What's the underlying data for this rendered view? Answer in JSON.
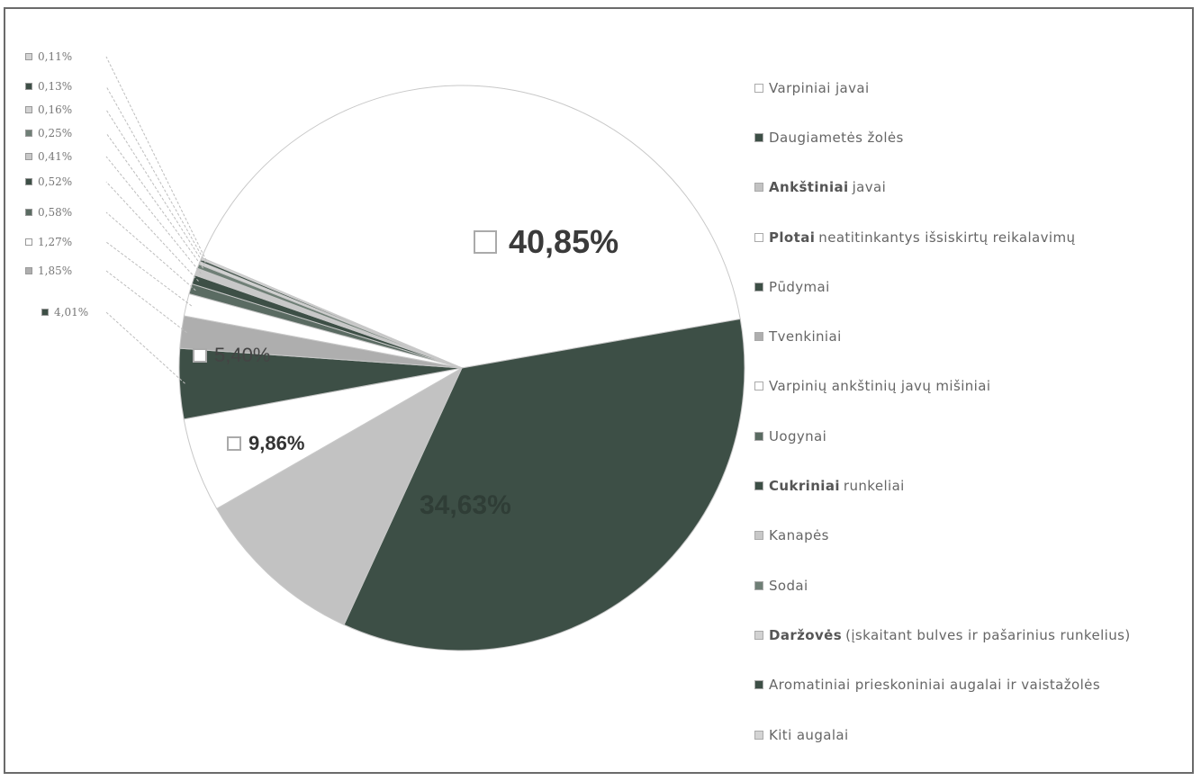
{
  "chart_data": {
    "type": "pie",
    "series": [
      {
        "values": [
          40.85,
          34.63,
          9.86,
          5.4,
          4.01,
          1.85,
          1.27,
          0.58,
          0.52,
          0.41,
          0.25,
          0.16,
          0.13,
          0.11
        ]
      }
    ],
    "data_labels": [
      "40,85%",
      "34,63%",
      "9,86%",
      "5,40%",
      "4,01%",
      "1,85%",
      "1,27%",
      "0,58%",
      "0,52%",
      "0,41%",
      "0,25%",
      "0,16%",
      "0,13%",
      "0,11%"
    ],
    "colors": [
      "#ffffff",
      "#3d4f46",
      "#c2c2c2",
      "#ffffff",
      "#3d4f46",
      "#aeaeae",
      "#ffffff",
      "#5a6b62",
      "#3d4f46",
      "#c8c8c8",
      "#6f7f76",
      "#d2d2d2",
      "#3d4f46",
      "#d4d4d4"
    ],
    "legend_position": "right"
  },
  "legend": [
    {
      "bold": "",
      "text": "Varpiniai javai",
      "color": "#ffffff"
    },
    {
      "bold": "",
      "text": "Daugiametės žolės",
      "color": "#3d4f46"
    },
    {
      "bold": "Ankštiniai",
      "text": "javai",
      "color": "#c2c2c2"
    },
    {
      "bold": "Plotai",
      "text": "neatitinkantys išsiskirtų reikalavimų",
      "color": "#ffffff"
    },
    {
      "bold": "",
      "text": "Pūdymai",
      "color": "#3d4f46"
    },
    {
      "bold": "",
      "text": "Tvenkiniai",
      "color": "#aeaeae"
    },
    {
      "bold": "",
      "text": "Varpinių ankštinių javų mišiniai",
      "color": "#ffffff"
    },
    {
      "bold": "",
      "text": "Uogynai",
      "color": "#5a6b62"
    },
    {
      "bold": "Cukriniai",
      "text": "runkeliai",
      "color": "#3d4f46"
    },
    {
      "bold": "",
      "text": "Kanapės",
      "color": "#c8c8c8"
    },
    {
      "bold": "",
      "text": "Sodai",
      "color": "#6f7f76"
    },
    {
      "bold": "Daržovės",
      "text": "(įskaitant bulves ir pašarinius runkelius)",
      "color": "#d2d2d2"
    },
    {
      "bold": "",
      "text": "Aromatiniai prieskoniniai augalai ir vaistažolės",
      "color": "#3d4f46"
    },
    {
      "bold": "",
      "text": "Kiti augalai",
      "color": "#d4d4d4"
    }
  ]
}
